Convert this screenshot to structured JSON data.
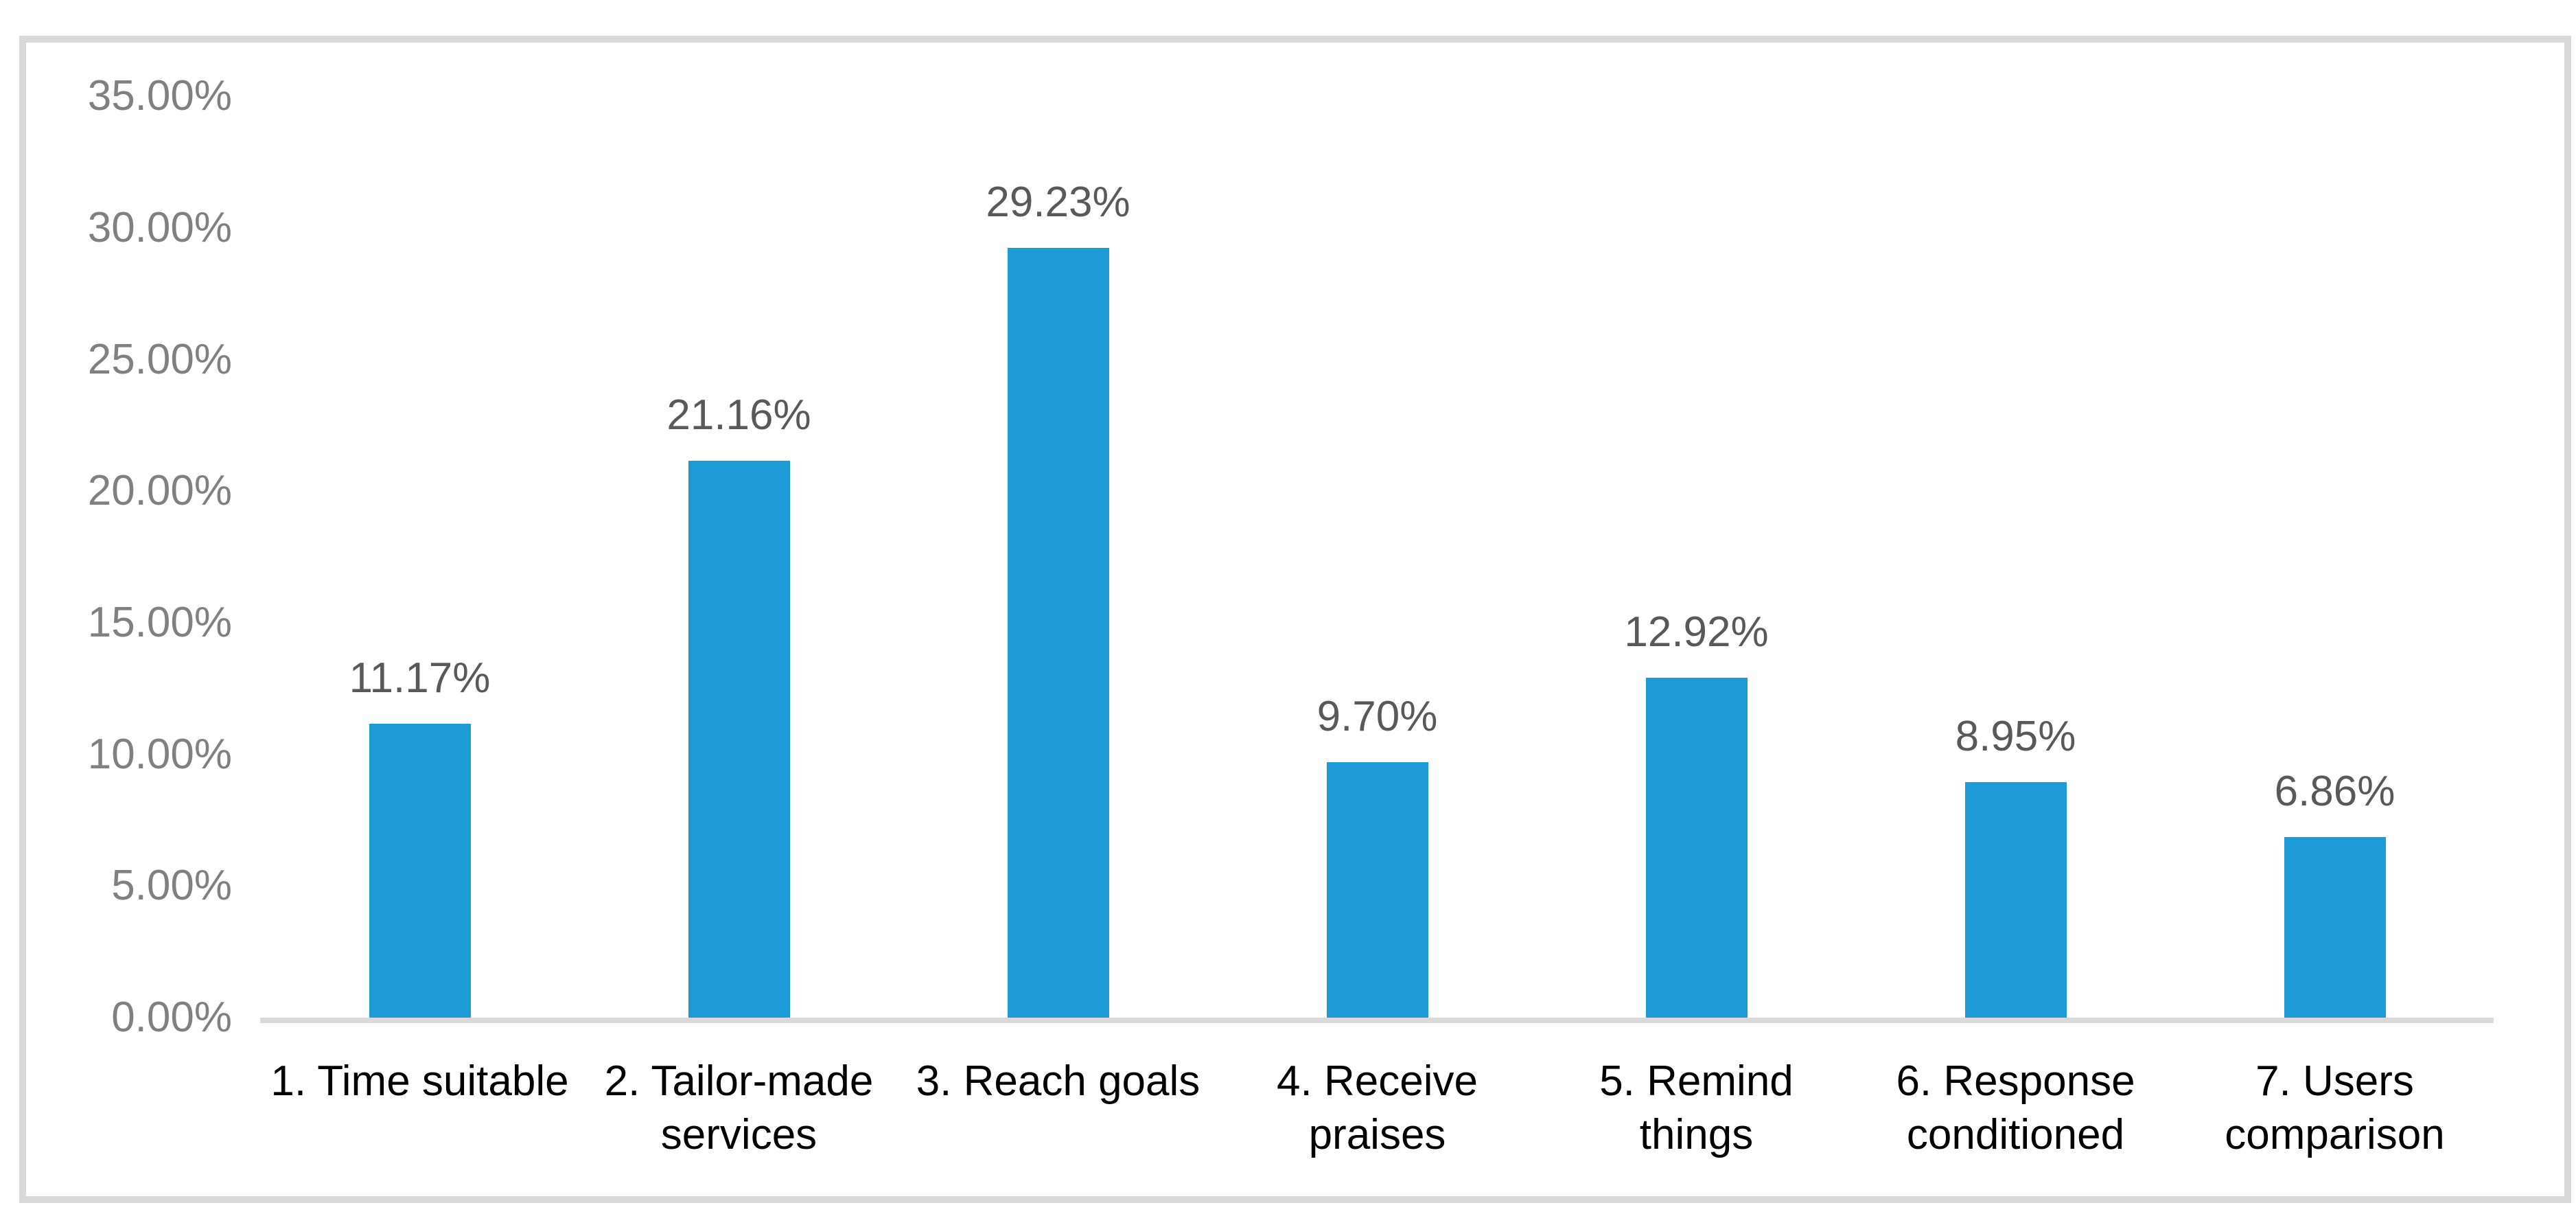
{
  "chart_data": {
    "type": "bar",
    "title": "",
    "xlabel": "",
    "ylabel": "",
    "categories": [
      "1. Time suitable",
      "2. Tailor-made services",
      "3. Reach goals",
      "4. Receive praises",
      "5. Remind things",
      "6. Response conditioned",
      "7. Users comparison"
    ],
    "values": [
      11.17,
      21.16,
      29.23,
      9.7,
      12.92,
      8.95,
      6.86
    ],
    "data_labels": [
      "11.17%",
      "21.16%",
      "29.23%",
      "9.70%",
      "12.92%",
      "8.95%",
      "6.86%"
    ],
    "y_ticks": [
      {
        "label": "0.00%",
        "value": 0
      },
      {
        "label": "5.00%",
        "value": 5
      },
      {
        "label": "10.00%",
        "value": 10
      },
      {
        "label": "15.00%",
        "value": 15
      },
      {
        "label": "20.00%",
        "value": 20
      },
      {
        "label": "25.00%",
        "value": 25
      },
      {
        "label": "30.00%",
        "value": 30
      },
      {
        "label": "35.00%",
        "value": 35
      }
    ],
    "ylim": [
      0,
      35
    ],
    "grid": false,
    "legend": false,
    "colors": {
      "bar": "#1C9BD7",
      "axis_line": "#D9D9D9",
      "frame_border": "#D9D9D9",
      "tick_text": "#808080",
      "data_label_text": "#595959",
      "category_text": "#000000",
      "background": "#FFFFFF"
    }
  }
}
